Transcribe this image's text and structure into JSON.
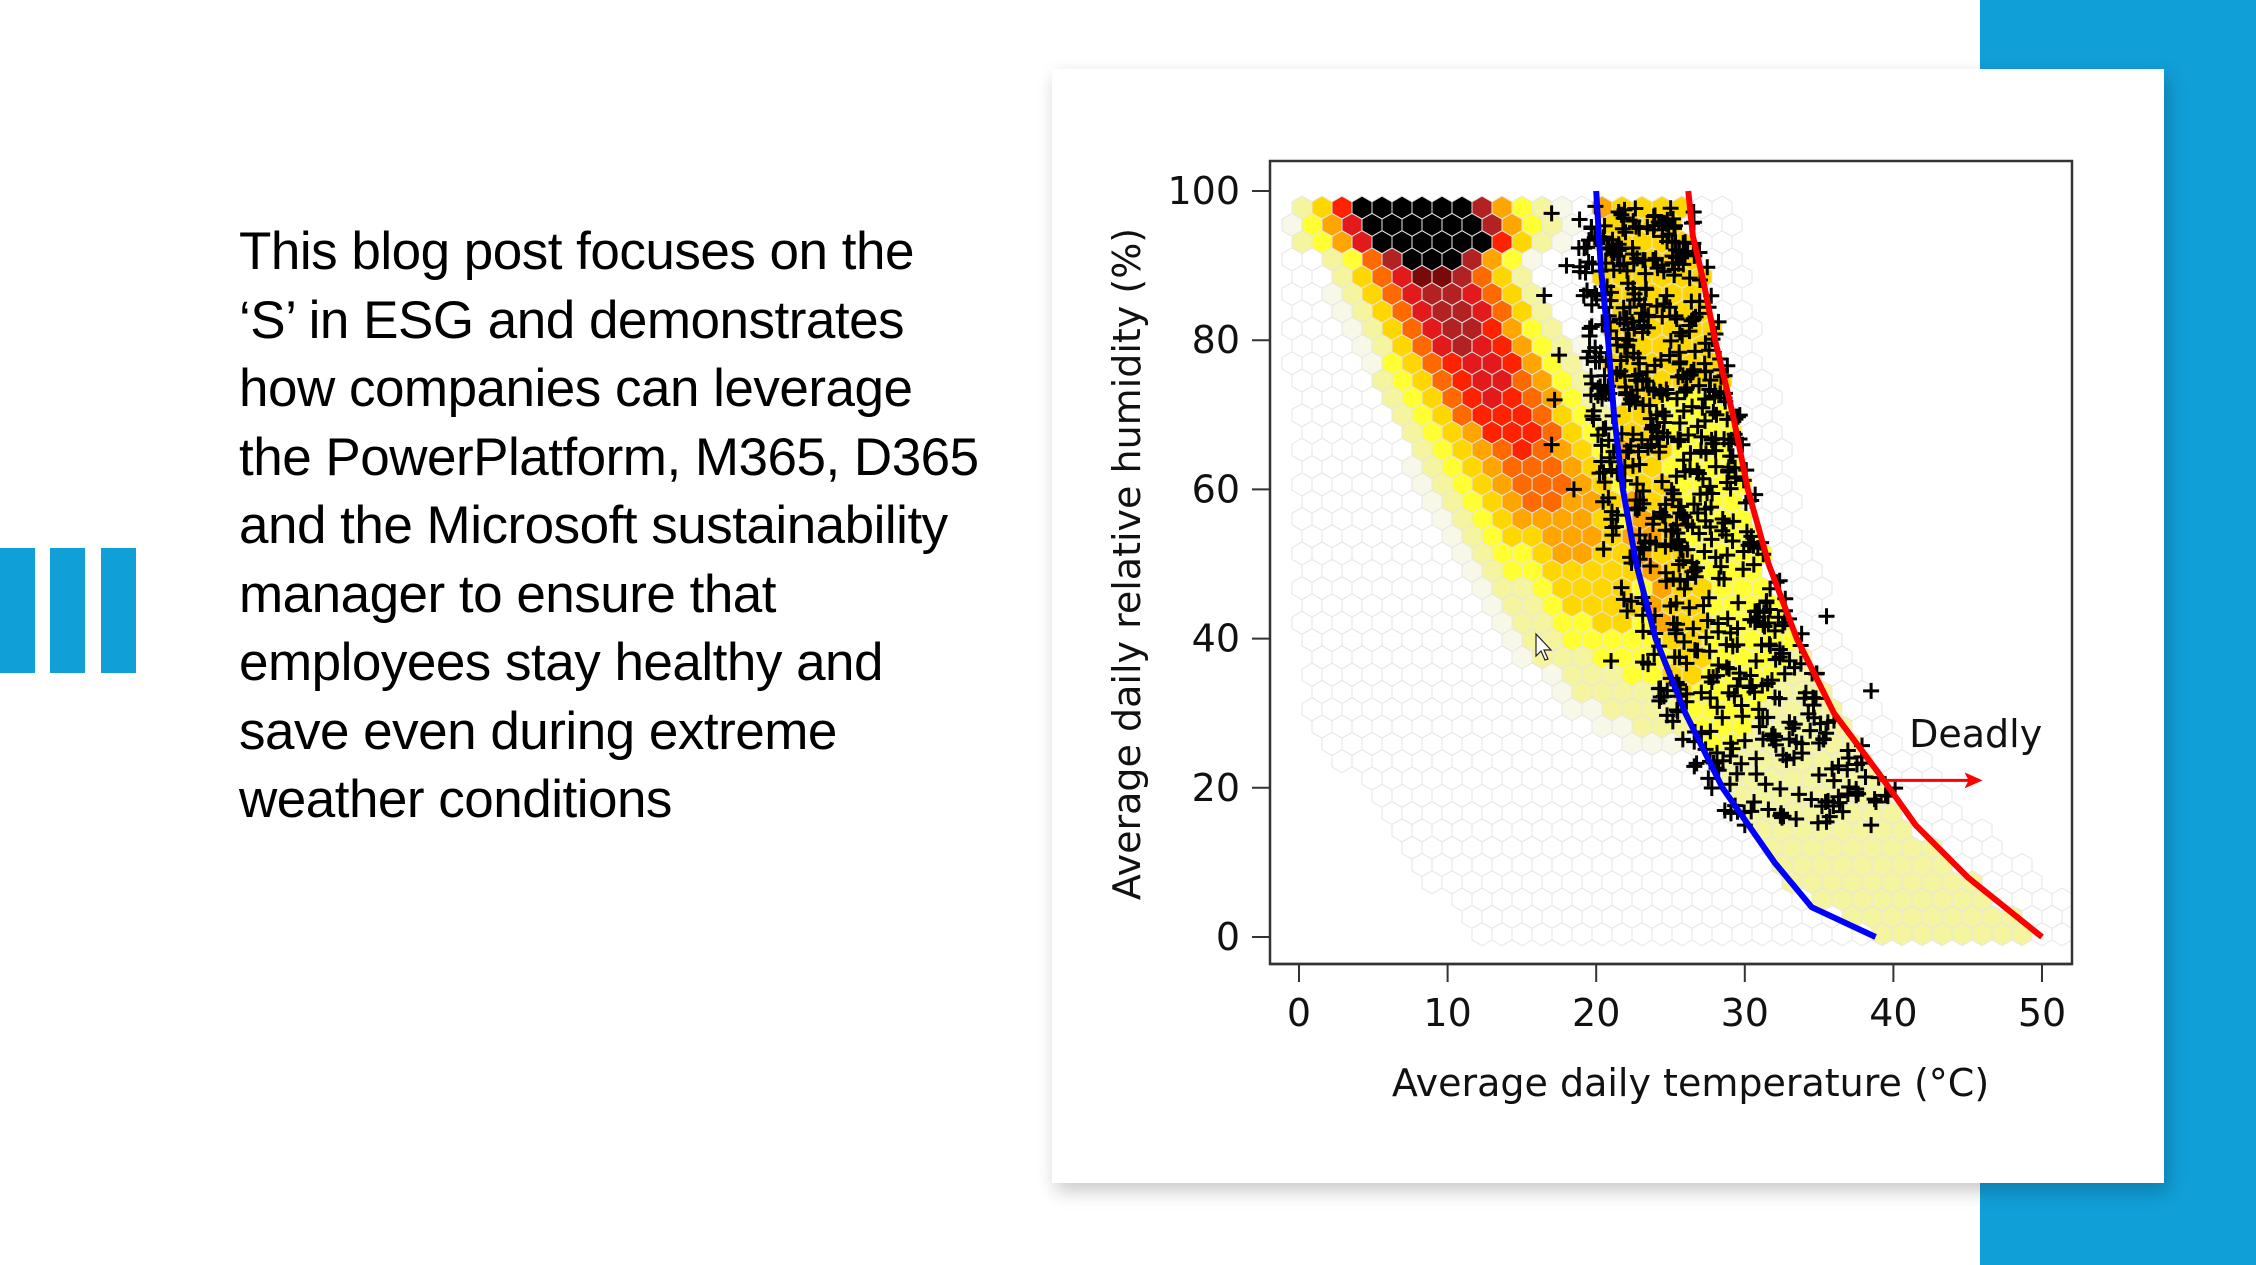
{
  "slide": {
    "body_text": "This blog post focuses on the ‘S’ in ESG and demonstrates how companies can leverage the PowerPlatform, M365, D365 and the Microsoft sustainability manager to ensure that employees stay healthy and save even during extreme weather conditions",
    "accent_color": "#119fd8",
    "decoration_icon": "three-vertical-bars"
  },
  "chart_data": {
    "type": "scatter",
    "subtype": "hexbin-density-with-scatter-and-threshold-curves",
    "title": "",
    "xlabel": "Average daily temperature (°C)",
    "ylabel": "Average daily relative humidity (%)",
    "xlim": [
      -2,
      52
    ],
    "ylim": [
      -4,
      104
    ],
    "x_ticks": [
      0,
      10,
      20,
      30,
      40,
      50
    ],
    "y_ticks": [
      0,
      20,
      40,
      60,
      80,
      100
    ],
    "grid": false,
    "density_colors": [
      "#f8f8e8",
      "#f5f5a0",
      "#ffff33",
      "#ffd700",
      "#ffa500",
      "#ff6a00",
      "#ff2200",
      "#e31a1c",
      "#b22222",
      "#7a0a0a",
      "#000000"
    ],
    "density_peak": {
      "x": 10,
      "y": 95
    },
    "series": [
      {
        "name": "Blue threshold curve",
        "color": "#0000ff",
        "points": [
          [
            20,
            100
          ],
          [
            20.3,
            90
          ],
          [
            20.8,
            80
          ],
          [
            21.2,
            70
          ],
          [
            21.8,
            60
          ],
          [
            22.7,
            50
          ],
          [
            24,
            40
          ],
          [
            26,
            30
          ],
          [
            28.5,
            20
          ],
          [
            32,
            10
          ],
          [
            34.5,
            4
          ],
          [
            38.8,
            0
          ]
        ]
      },
      {
        "name": "Red threshold curve",
        "color": "#ff0000",
        "points": [
          [
            26.2,
            100
          ],
          [
            26.5,
            94
          ],
          [
            27.2,
            88
          ],
          [
            28,
            80
          ],
          [
            29.2,
            70
          ],
          [
            30.2,
            60
          ],
          [
            31.6,
            50
          ],
          [
            33.5,
            40
          ],
          [
            36,
            30
          ],
          [
            39,
            22
          ],
          [
            41.5,
            15
          ],
          [
            45,
            8
          ],
          [
            50,
            0
          ]
        ]
      },
      {
        "name": "Deadly climatic conditions (crosses)",
        "marker": "+",
        "color": "#000000",
        "distribution": "dense band between ~20-30 °C across 15-98 % humidity, with outliers up to ~39 °C"
      }
    ],
    "annotations": [
      {
        "text": "Deadly",
        "x": 42,
        "y": 26,
        "arrow": {
          "from": [
            39,
            21
          ],
          "to": [
            46,
            21
          ],
          "color": "#ff0000"
        }
      }
    ]
  }
}
